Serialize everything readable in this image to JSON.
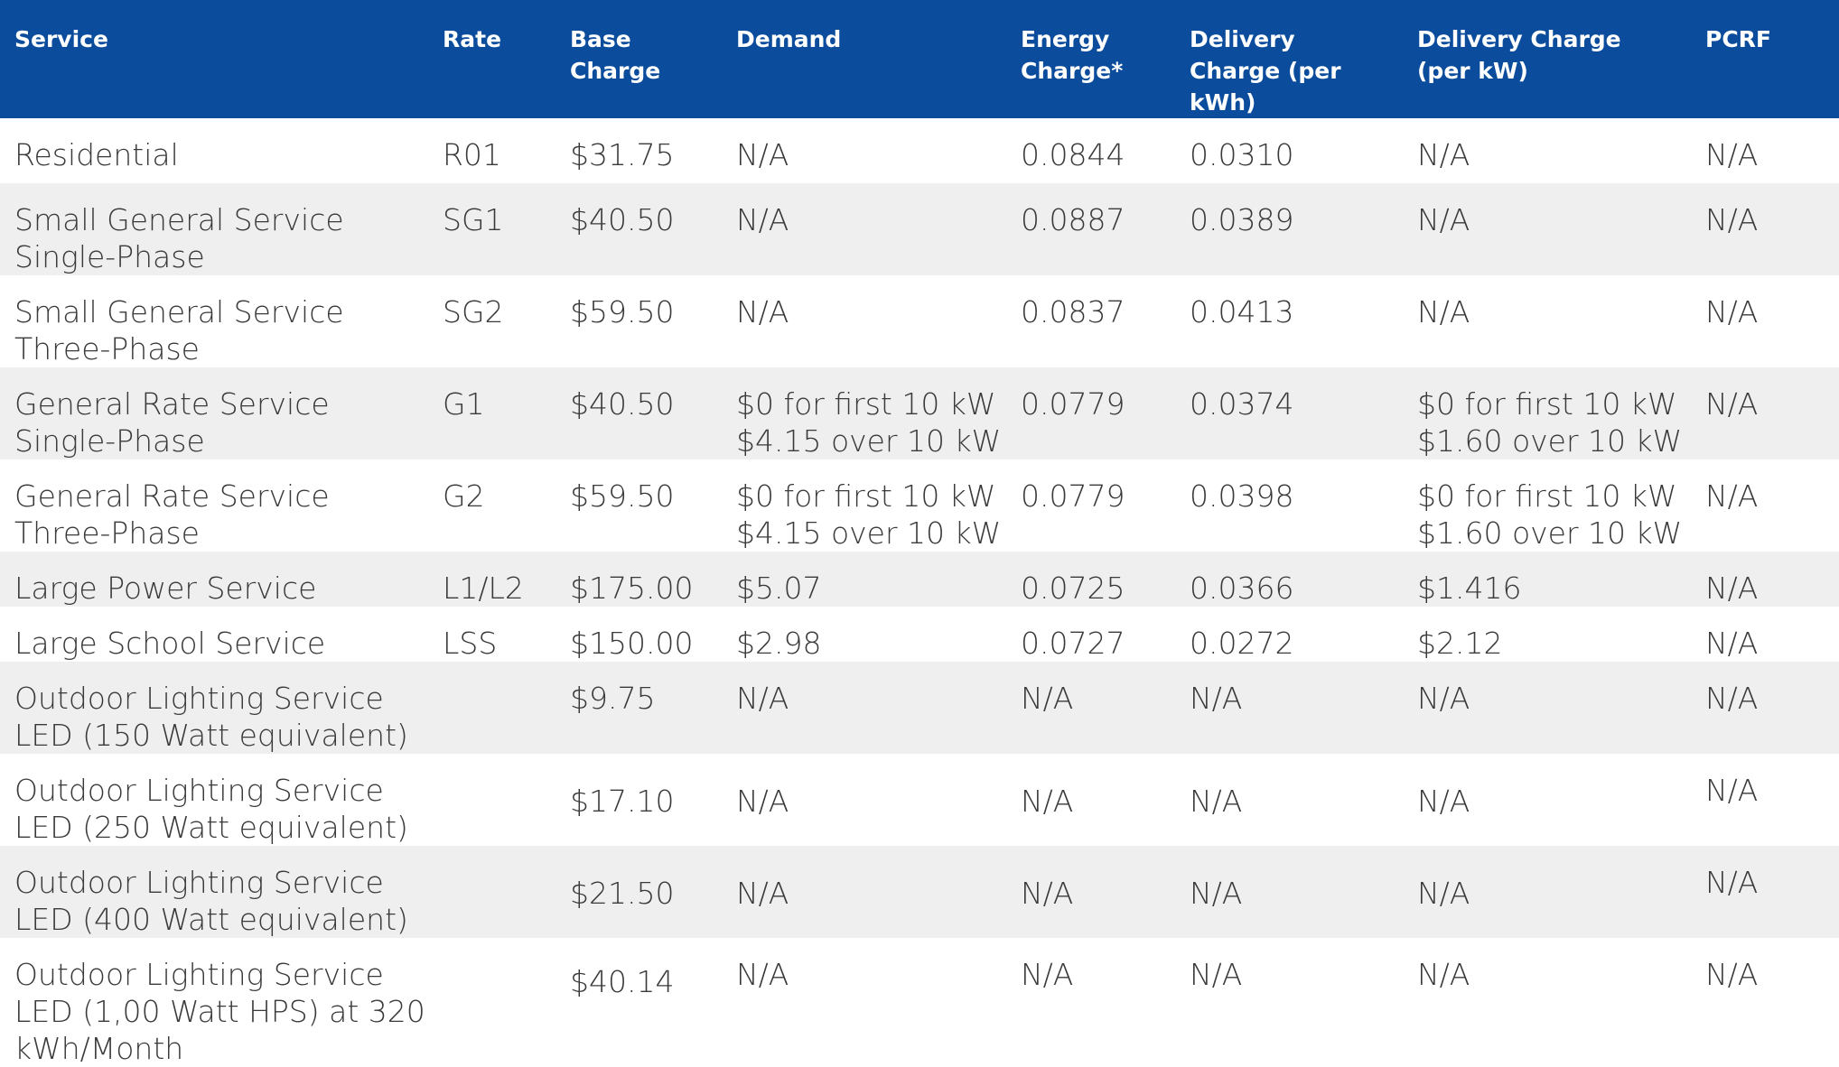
{
  "headers": {
    "service": [
      "Service"
    ],
    "rate": [
      "Rate"
    ],
    "base_charge": [
      "Base",
      "Charge"
    ],
    "demand": [
      "Demand"
    ],
    "energy_charge": [
      "Energy",
      "Charge*"
    ],
    "delivery_kwh": [
      "Delivery Charge",
      "(per kWh)"
    ],
    "delivery_kw": [
      "Delivery Charge",
      "(per kW)"
    ],
    "pcrf": [
      "PCRF"
    ]
  },
  "rows": [
    {
      "service": [
        "Residential"
      ],
      "rate": "R01",
      "base": "$31.75",
      "demand": [
        "N/A"
      ],
      "energy": "0.0844",
      "delivery_kwh": "0.0310",
      "delivery_kw": [
        "N/A"
      ],
      "pcrf": "N/A"
    },
    {
      "service": [
        "Small General Service",
        "Single-Phase"
      ],
      "rate": "SG1",
      "base": "$40.50",
      "demand": [
        "N/A"
      ],
      "energy": "0.0887",
      "delivery_kwh": "0.0389",
      "delivery_kw": [
        "N/A"
      ],
      "pcrf": "N/A"
    },
    {
      "service": [
        "Small General Service",
        "Three-Phase"
      ],
      "rate": "SG2",
      "base": "$59.50",
      "demand": [
        "N/A"
      ],
      "energy": "0.0837",
      "delivery_kwh": "0.0413",
      "delivery_kw": [
        "N/A"
      ],
      "pcrf": "N/A"
    },
    {
      "service": [
        "General Rate Service",
        "Single-Phase"
      ],
      "rate": "G1",
      "base": "$40.50",
      "demand": [
        "$0 for first 10 kW",
        "$4.15 over 10 kW"
      ],
      "energy": "0.0779",
      "delivery_kwh": "0.0374",
      "delivery_kw": [
        "$0 for first 10 kW",
        "$1.60 over 10 kW"
      ],
      "pcrf": "N/A"
    },
    {
      "service": [
        "General Rate Service",
        "Three-Phase"
      ],
      "rate": "G2",
      "base": "$59.50",
      "demand": [
        "$0 for first 10 kW",
        "$4.15 over 10 kW"
      ],
      "energy": "0.0779",
      "delivery_kwh": "0.0398",
      "delivery_kw": [
        "$0 for first 10 kW",
        "$1.60 over 10 kW"
      ],
      "pcrf": "N/A"
    },
    {
      "service": [
        "Large Power Service"
      ],
      "rate": "L1/L2",
      "base": "$175.00",
      "demand": [
        "$5.07"
      ],
      "energy": "0.0725",
      "delivery_kwh": "0.0366",
      "delivery_kw": [
        "$1.416"
      ],
      "pcrf": "N/A"
    },
    {
      "service": [
        "Large School Service"
      ],
      "rate": "LSS",
      "base": "$150.00",
      "demand": [
        "$2.98"
      ],
      "energy": "0.0727",
      "delivery_kwh": "0.0272",
      "delivery_kw": [
        "$2.12"
      ],
      "pcrf": "N/A"
    },
    {
      "service": [
        "Outdoor Lighting Service",
        "LED (150 Watt equivalent)"
      ],
      "rate": "",
      "base": "$9.75",
      "demand": [
        "N/A"
      ],
      "energy": "N/A",
      "delivery_kwh": "N/A",
      "delivery_kw": [
        "N/A"
      ],
      "pcrf": "N/A"
    },
    {
      "service": [
        "Outdoor Lighting Service",
        "LED (250 Watt equivalent)"
      ],
      "rate": "",
      "base": "$17.10",
      "demand": [
        "N/A"
      ],
      "energy": "N/A",
      "delivery_kwh": "N/A",
      "delivery_kw": [
        "N/A"
      ],
      "pcrf": "N/A"
    },
    {
      "service": [
        "Outdoor Lighting Service",
        "LED (400 Watt equivalent)"
      ],
      "rate": "",
      "base": "$21.50",
      "demand": [
        "N/A"
      ],
      "energy": "N/A",
      "delivery_kwh": "N/A",
      "delivery_kw": [
        "N/A"
      ],
      "pcrf": "N/A"
    },
    {
      "service": [
        "Outdoor Lighting Service",
        "LED (1,00 Watt HPS) at 320",
        "kWh/Month"
      ],
      "rate": "",
      "base": "$40.14",
      "demand": [
        "N/A"
      ],
      "energy": "N/A",
      "delivery_kwh": "N/A",
      "delivery_kw": [
        "N/A"
      ],
      "pcrf": "N/A"
    }
  ]
}
